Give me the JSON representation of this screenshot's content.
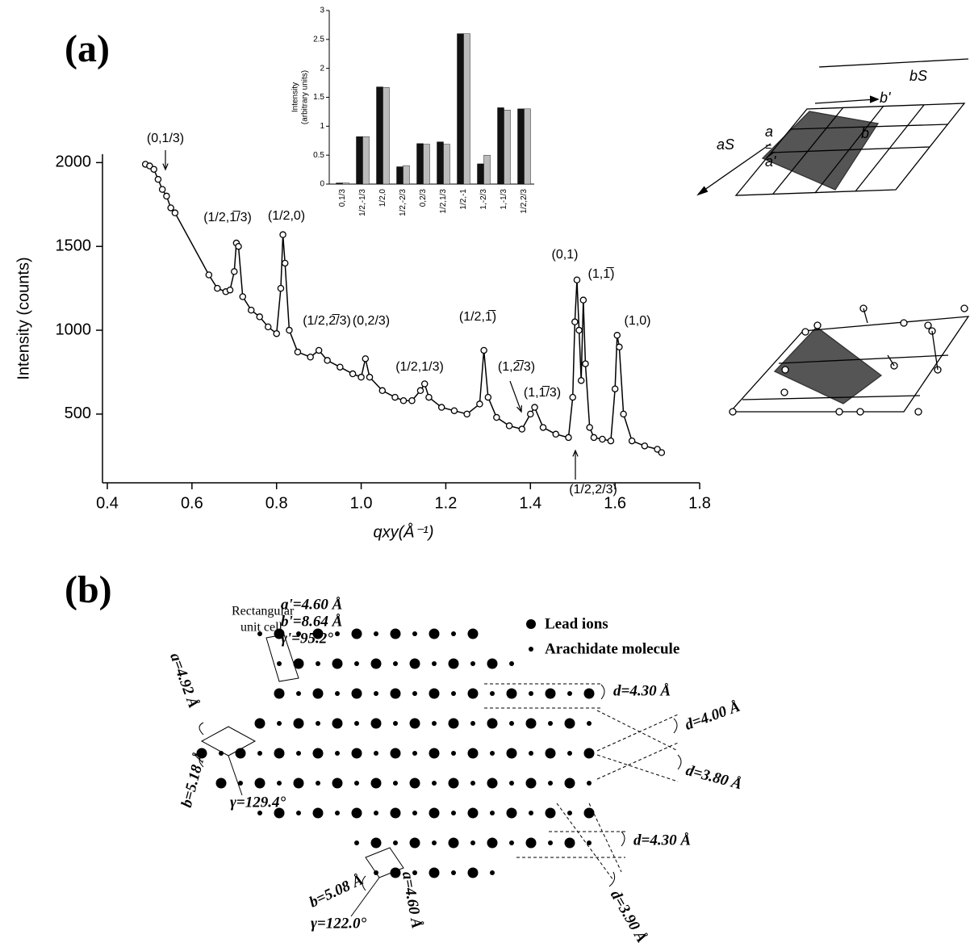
{
  "panel_labels": [
    "(a)",
    "(b)"
  ],
  "chart_data": [
    {
      "type": "line",
      "xlabel": "qxy(Å⁻¹)",
      "ylabel": "Intensity (counts)",
      "markers": true,
      "xlim": [
        0.4,
        1.8
      ],
      "xticks": [
        0.4,
        0.6,
        0.8,
        {
          "value": 1,
          "label": "1.0"
        },
        1.2,
        1.4,
        1.6,
        1.8
      ],
      "ylim": [
        90,
        2050
      ],
      "yticks": [
        500,
        1000,
        1500,
        2000
      ],
      "x": [
        0.49,
        0.5,
        0.51,
        0.52,
        0.53,
        0.54,
        0.55,
        0.56,
        0.64,
        0.66,
        0.68,
        0.69,
        0.7,
        0.705,
        0.71,
        0.72,
        0.74,
        0.76,
        0.78,
        0.8,
        0.81,
        0.815,
        0.82,
        0.83,
        0.85,
        0.88,
        0.9,
        0.92,
        0.95,
        0.98,
        1.0,
        1.01,
        1.02,
        1.05,
        1.08,
        1.1,
        1.12,
        1.14,
        1.15,
        1.16,
        1.19,
        1.22,
        1.25,
        1.28,
        1.29,
        1.3,
        1.32,
        1.35,
        1.38,
        1.4,
        1.41,
        1.43,
        1.46,
        1.49,
        1.5,
        1.505,
        1.51,
        1.515,
        1.52,
        1.525,
        1.53,
        1.54,
        1.55,
        1.57,
        1.59,
        1.6,
        1.605,
        1.61,
        1.62,
        1.64,
        1.67,
        1.7,
        1.71
      ],
      "series": [
        {
          "color": "#000000",
          "values": [
            1990,
            1980,
            1960,
            1900,
            1840,
            1800,
            1730,
            1700,
            1330,
            1250,
            1230,
            1240,
            1350,
            1520,
            1500,
            1200,
            1120,
            1080,
            1020,
            980,
            1250,
            1570,
            1400,
            1000,
            870,
            840,
            880,
            820,
            780,
            740,
            720,
            830,
            720,
            640,
            600,
            580,
            580,
            640,
            680,
            600,
            540,
            520,
            500,
            560,
            880,
            600,
            480,
            430,
            410,
            500,
            540,
            420,
            380,
            360,
            600,
            1050,
            1300,
            1000,
            700,
            1180,
            800,
            420,
            360,
            350,
            340,
            650,
            970,
            900,
            500,
            340,
            310,
            290,
            270
          ]
        }
      ],
      "annotations": [
        "(0,1/3)",
        "(1/2,1̅/3)",
        "(1/2,0)",
        "(1/2,2̅/3)",
        "(0,2/3)",
        "(1/2,1/3)",
        "(1/2,1̅)",
        "(1,2̅/3)",
        "(1,1̅/3)",
        "(0,1)",
        "(1,1̅)",
        "(1,0)",
        "(1/2,2/3)"
      ]
    },
    {
      "type": "bar",
      "ylabel": [
        "Intensity",
        "(arbitrary units)"
      ],
      "categories": [
        "0,1/3",
        "1/2,-1/3",
        "1/2,0",
        "1/2,-2/3",
        "0,2/3",
        "1/2,1/3",
        "1/2,-1",
        "1,-2/3",
        "1,-1/3",
        "1/2,2/3"
      ],
      "ylim": [
        0,
        3
      ],
      "yticks": [
        0,
        0.5,
        1,
        1.5,
        2,
        2.5,
        3
      ],
      "series": [
        {
          "color": "#111111",
          "values": [
            0.02,
            0.82,
            1.68,
            0.3,
            0.7,
            0.73,
            2.6,
            0.35,
            1.32,
            1.3
          ]
        },
        {
          "color": "#bbbbbb",
          "values": [
            0.02,
            0.82,
            1.67,
            0.32,
            0.69,
            0.69,
            2.6,
            0.5,
            1.28,
            1.3
          ]
        }
      ]
    }
  ],
  "lattice_diagram": {
    "labels": [
      "bS",
      "b'",
      "aS",
      "a",
      "=",
      "a'",
      "b"
    ]
  },
  "panel_b": {
    "unit_cell_label": [
      "Rectangular",
      "unit cell"
    ],
    "unit_cell_params": [
      "a'=4.60 Å",
      "b'=8.64 Å",
      "γ'=95.2°"
    ],
    "legend": [
      "Lead ions",
      "Arachidate molecule"
    ],
    "spacings": [
      "d=4.30 Å",
      "d=4.00 Å",
      "d=3.80 Å",
      "d=4.30 Å",
      "d=3.90 Å"
    ],
    "cell_labels": [
      "a=4.92 Å",
      "b=5.18 Å",
      "γ=129.4°",
      "b=5.08 Å",
      "γ=122.0°",
      "a=4.60 Å"
    ]
  }
}
